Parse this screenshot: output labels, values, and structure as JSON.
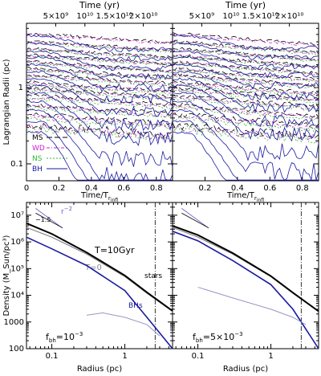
{
  "chart_data": [
    {
      "type": "line",
      "panel": "top-left",
      "top_axis_title": "Time (yr)",
      "top_ticks": [
        {
          "label": "5×10⁹",
          "t": 0.18
        },
        {
          "label": "10¹⁰",
          "t": 0.36
        },
        {
          "label": "1.5×10¹⁰",
          "t": 0.54
        },
        {
          "label": "2×10¹⁰",
          "t": 0.72
        }
      ],
      "xlabel": "Time/T_rinfl",
      "ylabel": "Lagrangian Radii (pc)",
      "xlim": [
        0,
        0.9
      ],
      "ylim": [
        0.06,
        7
      ],
      "ylog": true,
      "xticks": [
        "0",
        "0.2",
        "0.4",
        "0.6",
        "0.8"
      ],
      "yticks": [
        "0.1",
        "1"
      ],
      "legend": {
        "placement": "bottom-left",
        "entries": [
          {
            "name": "MS",
            "color": "#000000",
            "dash": "7,3"
          },
          {
            "name": "WD",
            "color": "#cc22cc",
            "dash": "4,2,1,2"
          },
          {
            "name": "NS",
            "color": "#33bb33",
            "dash": "2,2"
          },
          {
            "name": "BH",
            "color": "#1a1aa0",
            "dash": ""
          }
        ]
      },
      "series": [
        {
          "name": "MS",
          "start_radii": [
            0.32,
            0.45,
            0.6,
            0.8,
            1.0,
            1.2,
            1.5,
            1.8,
            2.2,
            2.7,
            3.3,
            4.1,
            5.2
          ],
          "decline_dex": 0.12
        },
        {
          "name": "WD",
          "start_radii": [
            0.3,
            0.42,
            0.57,
            0.76,
            0.95,
            1.15,
            1.45,
            1.75,
            2.15,
            2.65,
            3.2,
            4.0,
            5.0
          ],
          "decline_dex": 0.12
        },
        {
          "name": "NS",
          "start_radii": [
            0.29,
            0.4,
            0.55,
            0.73,
            0.92,
            1.1,
            1.4,
            1.7,
            2.1,
            2.6,
            3.15,
            3.9
          ],
          "decline_dex": 0.12
        },
        {
          "name": "BH",
          "start_radii": [
            0.26,
            0.36,
            0.5,
            0.66,
            0.85,
            1.05,
            1.3,
            1.6,
            2.0,
            2.5,
            3.0,
            3.8,
            4.8
          ],
          "collapse_dex": [
            1.25,
            1.05,
            0.9,
            0.75,
            0.6,
            0.5,
            0.42,
            0.35,
            0.3,
            0.25,
            0.22,
            0.2,
            0.18
          ]
        }
      ]
    },
    {
      "type": "line",
      "panel": "top-right",
      "top_axis_title": "Time (yr)",
      "top_ticks": [
        {
          "label": "5×10⁹",
          "t": 0.18
        },
        {
          "label": "10¹⁰",
          "t": 0.36
        },
        {
          "label": "1.5×10¹⁰",
          "t": 0.54
        },
        {
          "label": "2×10¹⁰",
          "t": 0.72
        }
      ],
      "xlabel": "Time/T_rinfl",
      "xlim": [
        0,
        0.9
      ],
      "ylim": [
        0.06,
        7
      ],
      "ylog": true,
      "xticks": [
        "0.2",
        "0.4",
        "0.6",
        "0.8"
      ],
      "series": [
        {
          "name": "MS",
          "start_radii": [
            0.32,
            0.45,
            0.6,
            0.8,
            1.0,
            1.2,
            1.5,
            1.8,
            2.2,
            2.7,
            3.3,
            4.1,
            5.2
          ],
          "decline_dex": 0.15
        },
        {
          "name": "WD",
          "start_radii": [
            0.3,
            0.42,
            0.57,
            0.76,
            0.95,
            1.15,
            1.45,
            1.75,
            2.15,
            2.65,
            3.2,
            4.0,
            5.0
          ],
          "decline_dex": 0.15
        },
        {
          "name": "NS",
          "start_radii": [
            0.29,
            0.4,
            0.55,
            0.73,
            0.92,
            1.1,
            1.4,
            1.7,
            2.1,
            2.6,
            3.15,
            3.9
          ],
          "decline_dex": 0.15
        },
        {
          "name": "BH",
          "start_radii": [
            0.26,
            0.36,
            0.5,
            0.66,
            0.85,
            1.05,
            1.3,
            1.6,
            2.0,
            2.5,
            3.0,
            3.8,
            4.8
          ],
          "collapse_dex": [
            1.15,
            0.95,
            0.8,
            0.66,
            0.55,
            0.46,
            0.38,
            0.32,
            0.27,
            0.23,
            0.2,
            0.18,
            0.16
          ]
        }
      ]
    },
    {
      "type": "line",
      "panel": "bottom-left",
      "xlabel": "Radius (pc)",
      "ylabel": "Density (M_Sun/pc³)",
      "xlim": [
        0.045,
        4.5
      ],
      "ylim": [
        100,
        30000000
      ],
      "xlog": true,
      "ylog": true,
      "xticks": [
        "0.1",
        "1"
      ],
      "yticks": [
        "100",
        "1000",
        "10⁴",
        "10⁵",
        "10⁶",
        "10⁷"
      ],
      "vline_x": 2.6,
      "slope_guides": [
        {
          "label": "r⁻²",
          "slope": -2
        },
        {
          "label": "−1.5",
          "slope": -1.5
        }
      ],
      "annotations": [
        "T=10Gyr",
        "T=0",
        "stars",
        "BHs"
      ],
      "f_bh_label": "f_bh=10⁻³",
      "series": [
        {
          "name": "stars T=0",
          "x": [
            0.045,
            0.1,
            0.3,
            1,
            2,
            4.5
          ],
          "y": [
            3500000,
            1500000,
            350000,
            50000,
            12000,
            2500
          ]
        },
        {
          "name": "stars T=10Gyr",
          "x": [
            0.045,
            0.1,
            0.3,
            1,
            2,
            4.5
          ],
          "y": [
            5000000,
            2000000,
            400000,
            55000,
            13000,
            2600
          ]
        },
        {
          "name": "BHs T=10Gyr",
          "x": [
            0.045,
            0.1,
            0.3,
            1,
            2,
            4.5
          ],
          "y": [
            1500000,
            550000,
            130000,
            15000,
            1500,
            100
          ]
        },
        {
          "name": "BHs T=0",
          "x": [
            0.3,
            0.5,
            1,
            2,
            3
          ],
          "y": [
            1800,
            2200,
            1500,
            800,
            300
          ]
        }
      ]
    },
    {
      "type": "line",
      "panel": "bottom-right",
      "xlabel": "Radius (pc)",
      "xlim": [
        0.045,
        4.5
      ],
      "ylim": [
        100,
        30000000
      ],
      "xlog": true,
      "ylog": true,
      "xticks": [
        "0.1",
        "1"
      ],
      "vline_x": 2.6,
      "f_bh_label": "f_bh=5×10⁻³",
      "series": [
        {
          "name": "stars T=0",
          "x": [
            0.045,
            0.1,
            0.3,
            1,
            2,
            4.5
          ],
          "y": [
            3500000,
            1500000,
            350000,
            50000,
            12000,
            2500
          ]
        },
        {
          "name": "stars T=10Gyr",
          "x": [
            0.045,
            0.1,
            0.3,
            1,
            2,
            4.5
          ],
          "y": [
            4000000,
            1800000,
            380000,
            52000,
            12500,
            2500
          ]
        },
        {
          "name": "BHs T=10Gyr",
          "x": [
            0.045,
            0.1,
            0.3,
            1,
            2,
            4.5
          ],
          "y": [
            2500000,
            1100000,
            200000,
            25000,
            3000,
            100
          ]
        },
        {
          "name": "BHs T=0",
          "x": [
            0.1,
            0.3,
            1,
            2,
            3
          ],
          "y": [
            20000,
            8000,
            3000,
            1500,
            800
          ]
        }
      ]
    }
  ]
}
